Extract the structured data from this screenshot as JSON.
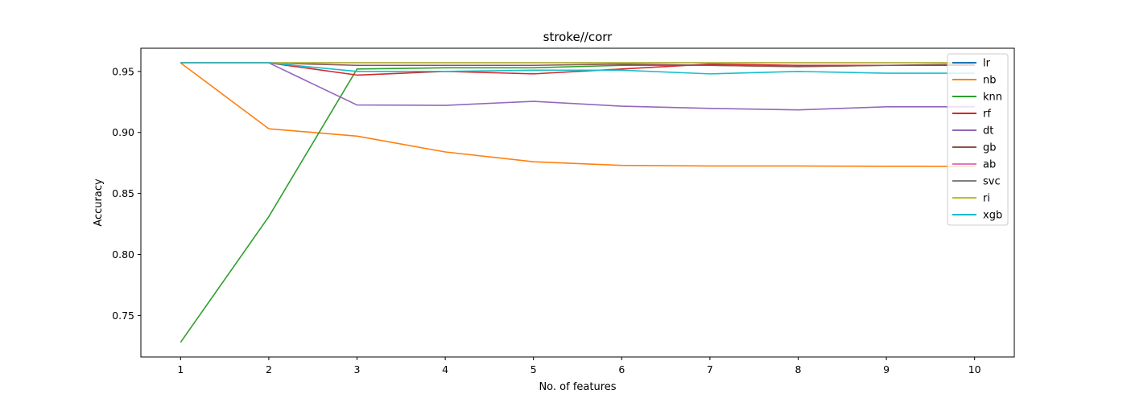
{
  "chart_data": {
    "type": "line",
    "title": "stroke//corr",
    "xlabel": "No. of features",
    "ylabel": "Accuracy",
    "x": [
      1,
      2,
      3,
      4,
      5,
      6,
      7,
      8,
      9,
      10
    ],
    "xlim": [
      0.55,
      10.45
    ],
    "ylim": [
      0.716,
      0.969
    ],
    "yticks": [
      0.75,
      0.8,
      0.85,
      0.9,
      0.95
    ],
    "grid": false,
    "legend_position": "top-right",
    "series": [
      {
        "name": "lr",
        "color": "#1f77b4",
        "values": [
          0.957,
          0.957,
          0.957,
          0.957,
          0.957,
          0.957,
          0.957,
          0.957,
          0.957,
          0.957
        ]
      },
      {
        "name": "nb",
        "color": "#ff7f0e",
        "values": [
          0.957,
          0.903,
          0.897,
          0.884,
          0.876,
          0.873,
          0.8725,
          0.8725,
          0.8723,
          0.8722
        ]
      },
      {
        "name": "knn",
        "color": "#2ca02c",
        "values": [
          0.728,
          0.831,
          0.952,
          0.953,
          0.953,
          0.955,
          0.955,
          0.954,
          0.955,
          0.955
        ]
      },
      {
        "name": "rf",
        "color": "#d62728",
        "values": [
          0.957,
          0.957,
          0.947,
          0.95,
          0.948,
          0.952,
          0.956,
          0.955,
          0.955,
          0.955
        ]
      },
      {
        "name": "dt",
        "color": "#9467bd",
        "values": [
          0.957,
          0.957,
          0.9225,
          0.9222,
          0.9255,
          0.9215,
          0.9197,
          0.9185,
          0.921,
          0.921
        ]
      },
      {
        "name": "gb",
        "color": "#8c564b",
        "values": [
          0.957,
          0.957,
          0.955,
          0.955,
          0.955,
          0.956,
          0.955,
          0.954,
          0.955,
          0.956
        ]
      },
      {
        "name": "ab",
        "color": "#e377c2",
        "values": [
          0.957,
          0.957,
          0.957,
          0.957,
          0.957,
          0.957,
          0.957,
          0.957,
          0.957,
          0.957
        ]
      },
      {
        "name": "svc",
        "color": "#7f7f7f",
        "values": [
          0.957,
          0.957,
          0.957,
          0.957,
          0.957,
          0.957,
          0.957,
          0.957,
          0.957,
          0.957
        ]
      },
      {
        "name": "ri",
        "color": "#bcbd22",
        "values": [
          0.957,
          0.957,
          0.957,
          0.957,
          0.957,
          0.957,
          0.957,
          0.957,
          0.957,
          0.957
        ]
      },
      {
        "name": "xgb",
        "color": "#17becf",
        "values": [
          0.957,
          0.957,
          0.95,
          0.95,
          0.951,
          0.951,
          0.948,
          0.95,
          0.9485,
          0.9485
        ]
      }
    ]
  }
}
